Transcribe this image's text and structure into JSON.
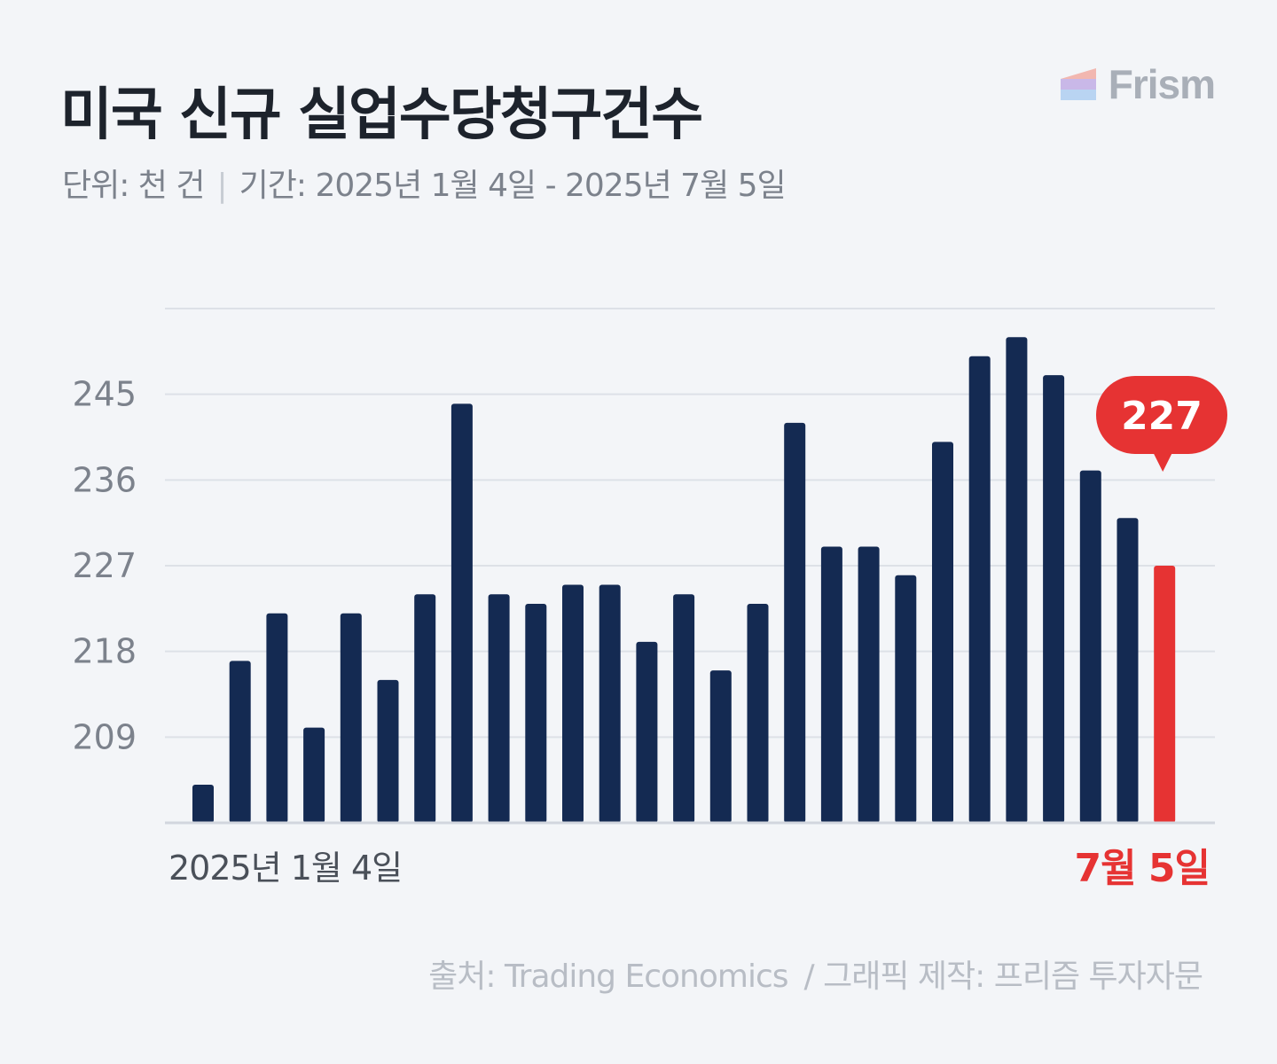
{
  "header": {
    "title": "미국 신규 실업수당청구건수",
    "unit": "단위: 천 건",
    "period": "기간: 2025년 1월 4일 - 2025년 7월 5일"
  },
  "logo": {
    "text": "Frism"
  },
  "footer": {
    "source": "출처: Trading Economics",
    "credit": "/ 그래픽 제작: 프리즘 투자자문"
  },
  "colors": {
    "bar": "#142a52",
    "highlight": "#e63333",
    "grid": "#dde1e7",
    "axis_text": "#7c828c"
  },
  "chart_data": {
    "type": "bar",
    "x_start_label": "2025년 1월 4일",
    "x_end_label": "7월 5일",
    "yticks": [
      209,
      218,
      227,
      236,
      245
    ],
    "ylim": [
      200,
      254
    ],
    "values": [
      204,
      217,
      222,
      210,
      222,
      215,
      224,
      244,
      224,
      223,
      225,
      225,
      219,
      224,
      216,
      223,
      242,
      229,
      229,
      226,
      240,
      249,
      251,
      247,
      237,
      232,
      227
    ],
    "highlight_index": 26,
    "callout": "227",
    "grid": true
  }
}
